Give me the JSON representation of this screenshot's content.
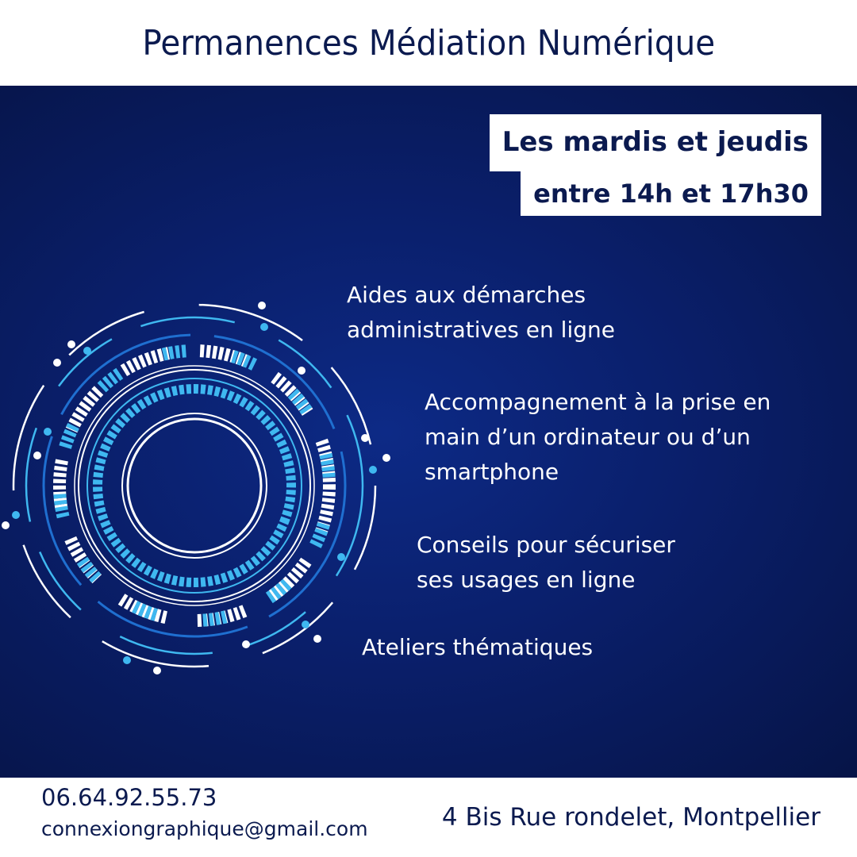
{
  "header": {
    "title": "Permanences Médiation Numérique"
  },
  "schedule": {
    "line1": "Les mardis et jeudis",
    "line2": "entre 14h et 17h30"
  },
  "services": [
    {
      "lines": [
        "Aides aux démarches",
        "administratives en ligne"
      ]
    },
    {
      "lines": [
        "Accompagnement à la prise en",
        "main d’un ordinateur ou d’un",
        "smartphone"
      ]
    },
    {
      "lines": [
        "Conseils pour sécuriser",
        "ses usages en ligne"
      ]
    },
    {
      "lines": [
        "Ateliers thématiques"
      ]
    }
  ],
  "footer": {
    "phone": "06.64.92.55.73",
    "email": "connexiongraphique@gmail.com",
    "address": "4 Bis Rue rondelet, Montpellier"
  },
  "colors": {
    "navy": "#0b1a4f",
    "light_blue": "#3fb8f0",
    "mid_blue": "#1f6fd0",
    "dark_blue": "#0f4fb0"
  }
}
